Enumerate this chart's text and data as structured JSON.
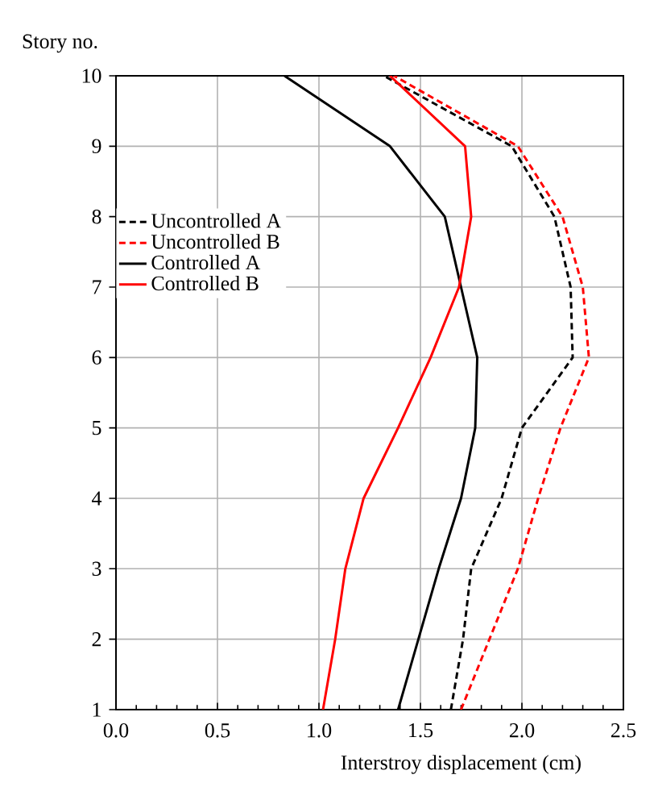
{
  "chart_data": {
    "type": "line",
    "xlabel": "Interstroy displacement (cm)",
    "ylabel": "Story no.",
    "xlim": [
      0,
      2.5
    ],
    "ylim": [
      1,
      10
    ],
    "xticks": [
      {
        "value": 0,
        "label": "0.0"
      },
      {
        "value": 0.5,
        "label": "0.5"
      },
      {
        "value": 1,
        "label": "1.0"
      },
      {
        "value": 1.5,
        "label": "1.5"
      },
      {
        "value": 2,
        "label": "2.0"
      },
      {
        "value": 2.5,
        "label": "2.5"
      }
    ],
    "yticks": [
      1,
      2,
      3,
      4,
      5,
      6,
      7,
      8,
      9,
      10
    ],
    "grid": true,
    "legend": "left",
    "marker": "none",
    "series": [
      {
        "name": "Uncontrolled A",
        "color": "#000000",
        "line_style": "dashed",
        "x": [
          1.65,
          1.71,
          1.75,
          1.9,
          2.0,
          2.25,
          2.24,
          2.16,
          1.95,
          1.32
        ],
        "values": [
          1,
          2,
          3,
          4,
          5,
          6,
          7,
          8,
          9,
          10
        ]
      },
      {
        "name": "Uncontrolled B",
        "color": "#ff0000",
        "line_style": "dashed",
        "x": [
          1.7,
          1.84,
          1.98,
          2.08,
          2.19,
          2.33,
          2.3,
          2.2,
          1.98,
          1.37
        ],
        "values": [
          1,
          2,
          3,
          4,
          5,
          6,
          7,
          8,
          9,
          10
        ]
      },
      {
        "name": "Controlled A",
        "color": "#000000",
        "line_style": "solid",
        "x": [
          1.39,
          1.49,
          1.59,
          1.7,
          1.77,
          1.78,
          1.7,
          1.62,
          1.35,
          0.83
        ],
        "values": [
          1,
          2,
          3,
          4,
          5,
          6,
          7,
          8,
          9,
          10
        ]
      },
      {
        "name": "Controlled B",
        "color": "#ff0000",
        "line_style": "solid",
        "x": [
          1.02,
          1.08,
          1.13,
          1.22,
          1.39,
          1.55,
          1.69,
          1.75,
          1.72,
          1.35
        ],
        "values": [
          1,
          2,
          3,
          4,
          5,
          6,
          7,
          8,
          9,
          10
        ]
      }
    ]
  }
}
